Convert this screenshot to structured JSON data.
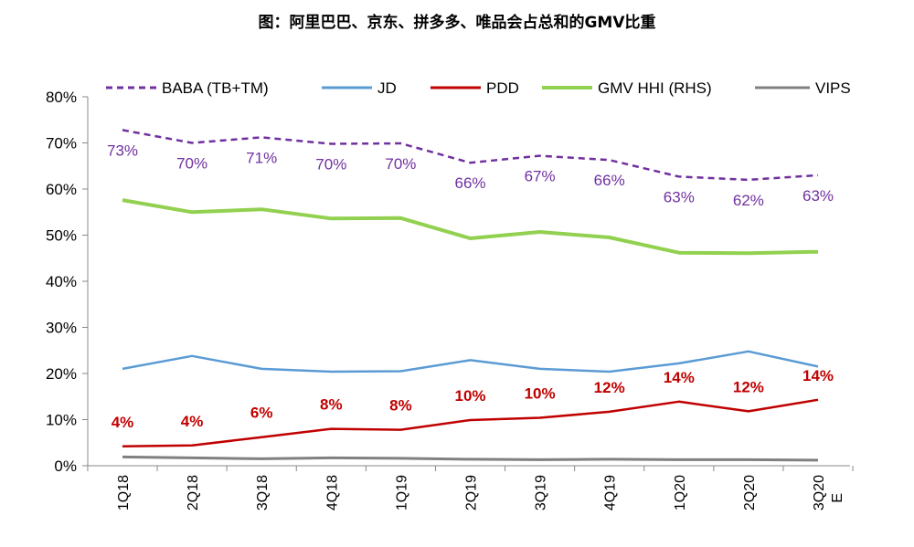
{
  "title": "图：阿里巴巴、京东、拼多多、唯品会占总和的GMV比重",
  "chart_data": {
    "type": "line",
    "categories": [
      "1Q18",
      "2Q18",
      "3Q18",
      "4Q18",
      "1Q19",
      "2Q19",
      "3Q19",
      "4Q19",
      "1Q20",
      "2Q20",
      "3Q20"
    ],
    "last_category_suffix": "E",
    "ylim": [
      0,
      80
    ],
    "yticks": [
      "0%",
      "10%",
      "20%",
      "30%",
      "40%",
      "50%",
      "60%",
      "70%",
      "80%"
    ],
    "grid": false,
    "legend_position": "top",
    "series": [
      {
        "name": "BABA (TB+TM)",
        "color": "#7030a0",
        "dash": true,
        "values": [
          72.8,
          70.0,
          71.2,
          69.8,
          69.9,
          65.7,
          67.2,
          66.3,
          62.7,
          62.0,
          63.0
        ],
        "labels": [
          "73%",
          "70%",
          "71%",
          "70%",
          "70%",
          "66%",
          "67%",
          "66%",
          "63%",
          "62%",
          "63%"
        ]
      },
      {
        "name": "JD",
        "color": "#5b9bd5",
        "values": [
          21.0,
          23.8,
          21.0,
          20.4,
          20.5,
          22.9,
          21.0,
          20.4,
          22.2,
          24.8,
          21.5
        ]
      },
      {
        "name": "PDD",
        "color": "#c00000",
        "values": [
          4.2,
          4.4,
          6.2,
          8.0,
          7.8,
          9.9,
          10.4,
          11.7,
          13.9,
          11.8,
          14.3
        ],
        "labels": [
          "4%",
          "4%",
          "6%",
          "8%",
          "8%",
          "10%",
          "10%",
          "12%",
          "14%",
          "12%",
          "14%"
        ]
      },
      {
        "name": "GMV HHI (RHS)",
        "color": "#92d050",
        "values": [
          57.6,
          55.0,
          55.6,
          53.6,
          53.7,
          49.3,
          50.7,
          49.5,
          46.2,
          46.1,
          46.4
        ]
      },
      {
        "name": "VIPS",
        "color": "#808080",
        "values": [
          1.9,
          1.7,
          1.5,
          1.7,
          1.6,
          1.4,
          1.3,
          1.4,
          1.3,
          1.3,
          1.2
        ]
      }
    ]
  }
}
